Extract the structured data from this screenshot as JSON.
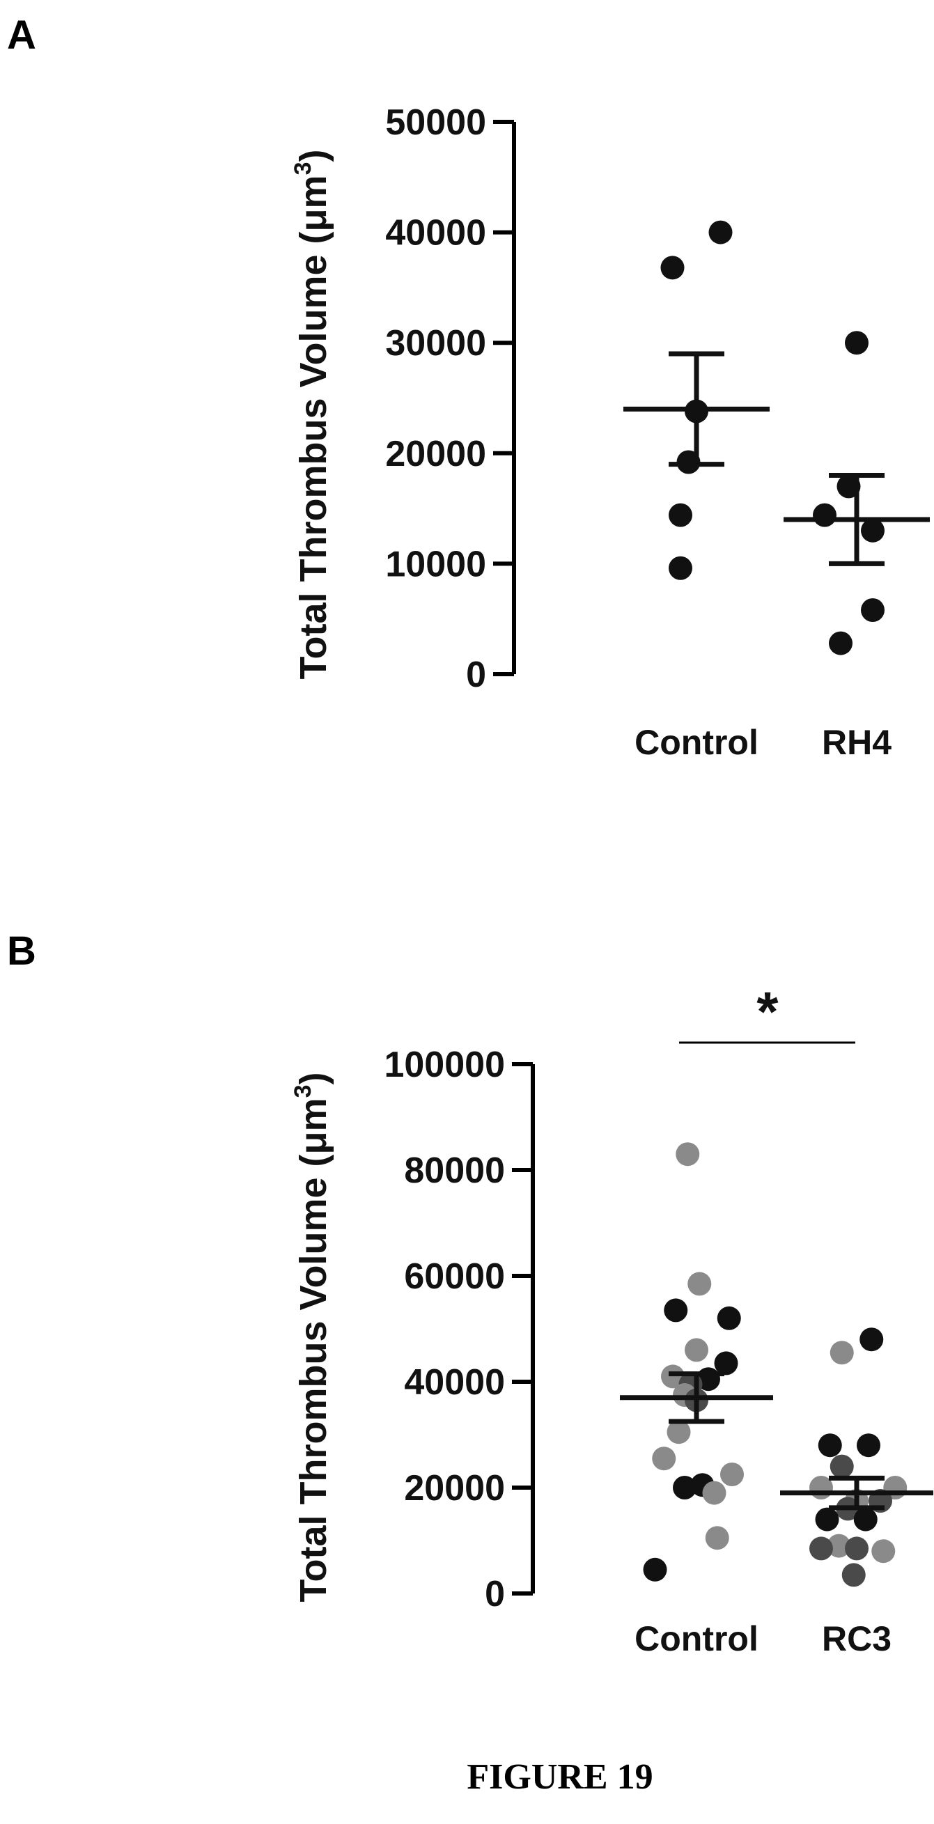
{
  "figure_caption": "FIGURE 19",
  "colors": {
    "dark_point": "#111111",
    "gray_point": "#8a8a8a",
    "mid_point": "#4a4a4a",
    "axis": "#000000"
  },
  "chart_data": [
    {
      "panel": "A",
      "type": "scatter",
      "ylabel_main": "Total Thrombus Volume (",
      "ylabel_unit": "μm",
      "ylabel_sup": "3",
      "ylabel_close": ")",
      "ylim": [
        0,
        50000
      ],
      "yticks": [
        0,
        10000,
        20000,
        30000,
        40000,
        50000
      ],
      "ytick_labels": [
        "0",
        "10000",
        "20000",
        "30000",
        "40000",
        "50000"
      ],
      "categories": [
        "Control",
        "RH4"
      ],
      "groups": [
        {
          "category": "Control",
          "mean": 24000,
          "sem": 5000,
          "points": [
            {
              "offset": 0.3,
              "y": 40000,
              "tone": "dark"
            },
            {
              "offset": -0.3,
              "y": 36800,
              "tone": "dark"
            },
            {
              "offset": 0.0,
              "y": 23800,
              "tone": "dark"
            },
            {
              "offset": -0.1,
              "y": 19200,
              "tone": "dark"
            },
            {
              "offset": -0.2,
              "y": 14400,
              "tone": "dark"
            },
            {
              "offset": -0.2,
              "y": 9600,
              "tone": "dark"
            }
          ]
        },
        {
          "category": "RH4",
          "mean": 14000,
          "sem": 4000,
          "points": [
            {
              "offset": 0.0,
              "y": 30000,
              "tone": "dark"
            },
            {
              "offset": -0.1,
              "y": 17000,
              "tone": "dark"
            },
            {
              "offset": -0.4,
              "y": 14400,
              "tone": "dark"
            },
            {
              "offset": 0.2,
              "y": 13000,
              "tone": "dark"
            },
            {
              "offset": 0.2,
              "y": 5800,
              "tone": "dark"
            },
            {
              "offset": -0.2,
              "y": 2800,
              "tone": "dark"
            }
          ]
        }
      ]
    },
    {
      "panel": "B",
      "type": "scatter",
      "ylabel_main": "Total Thrombus Volume (",
      "ylabel_unit": "μm",
      "ylabel_sup": "3",
      "ylabel_close": ")",
      "ylim": [
        0,
        100000
      ],
      "yticks": [
        0,
        20000,
        40000,
        60000,
        80000,
        100000
      ],
      "ytick_labels": [
        "0",
        "20000",
        "40000",
        "60000",
        "80000",
        "100000"
      ],
      "categories": [
        "Control",
        "RC3"
      ],
      "significance": "*",
      "groups": [
        {
          "category": "Control",
          "mean": 37000,
          "sem": 4500,
          "points": [
            {
              "offset": -0.15,
              "y": 83000,
              "tone": "gray"
            },
            {
              "offset": 0.05,
              "y": 58500,
              "tone": "gray"
            },
            {
              "offset": -0.35,
              "y": 53500,
              "tone": "dark"
            },
            {
              "offset": 0.55,
              "y": 52000,
              "tone": "dark"
            },
            {
              "offset": 0.0,
              "y": 46000,
              "tone": "gray"
            },
            {
              "offset": 0.5,
              "y": 43500,
              "tone": "dark"
            },
            {
              "offset": -0.4,
              "y": 41000,
              "tone": "gray"
            },
            {
              "offset": 0.2,
              "y": 40500,
              "tone": "dark"
            },
            {
              "offset": -0.1,
              "y": 39500,
              "tone": "mid"
            },
            {
              "offset": -0.2,
              "y": 37500,
              "tone": "gray"
            },
            {
              "offset": 0.0,
              "y": 36500,
              "tone": "mid"
            },
            {
              "offset": -0.3,
              "y": 30500,
              "tone": "gray"
            },
            {
              "offset": -0.55,
              "y": 25500,
              "tone": "gray"
            },
            {
              "offset": 0.6,
              "y": 22500,
              "tone": "gray"
            },
            {
              "offset": 0.1,
              "y": 20500,
              "tone": "dark"
            },
            {
              "offset": -0.2,
              "y": 20000,
              "tone": "dark"
            },
            {
              "offset": 0.3,
              "y": 19000,
              "tone": "gray"
            },
            {
              "offset": 0.35,
              "y": 10500,
              "tone": "gray"
            },
            {
              "offset": -0.7,
              "y": 4500,
              "tone": "dark"
            }
          ]
        },
        {
          "category": "RC3",
          "mean": 19000,
          "sem": 2800,
          "points": [
            {
              "offset": 0.25,
              "y": 48000,
              "tone": "dark"
            },
            {
              "offset": -0.25,
              "y": 45500,
              "tone": "gray"
            },
            {
              "offset": -0.45,
              "y": 28000,
              "tone": "dark"
            },
            {
              "offset": 0.2,
              "y": 28000,
              "tone": "dark"
            },
            {
              "offset": -0.25,
              "y": 24000,
              "tone": "mid"
            },
            {
              "offset": 0.65,
              "y": 20000,
              "tone": "gray"
            },
            {
              "offset": -0.6,
              "y": 20000,
              "tone": "gray"
            },
            {
              "offset": 0.0,
              "y": 17500,
              "tone": "gray"
            },
            {
              "offset": 0.4,
              "y": 17500,
              "tone": "mid"
            },
            {
              "offset": -0.15,
              "y": 16000,
              "tone": "mid"
            },
            {
              "offset": 0.15,
              "y": 14000,
              "tone": "dark"
            },
            {
              "offset": -0.5,
              "y": 14000,
              "tone": "dark"
            },
            {
              "offset": -0.3,
              "y": 9000,
              "tone": "gray"
            },
            {
              "offset": 0.0,
              "y": 8500,
              "tone": "mid"
            },
            {
              "offset": 0.45,
              "y": 8000,
              "tone": "gray"
            },
            {
              "offset": -0.6,
              "y": 8500,
              "tone": "mid"
            },
            {
              "offset": -0.05,
              "y": 3500,
              "tone": "mid"
            }
          ]
        }
      ]
    }
  ]
}
